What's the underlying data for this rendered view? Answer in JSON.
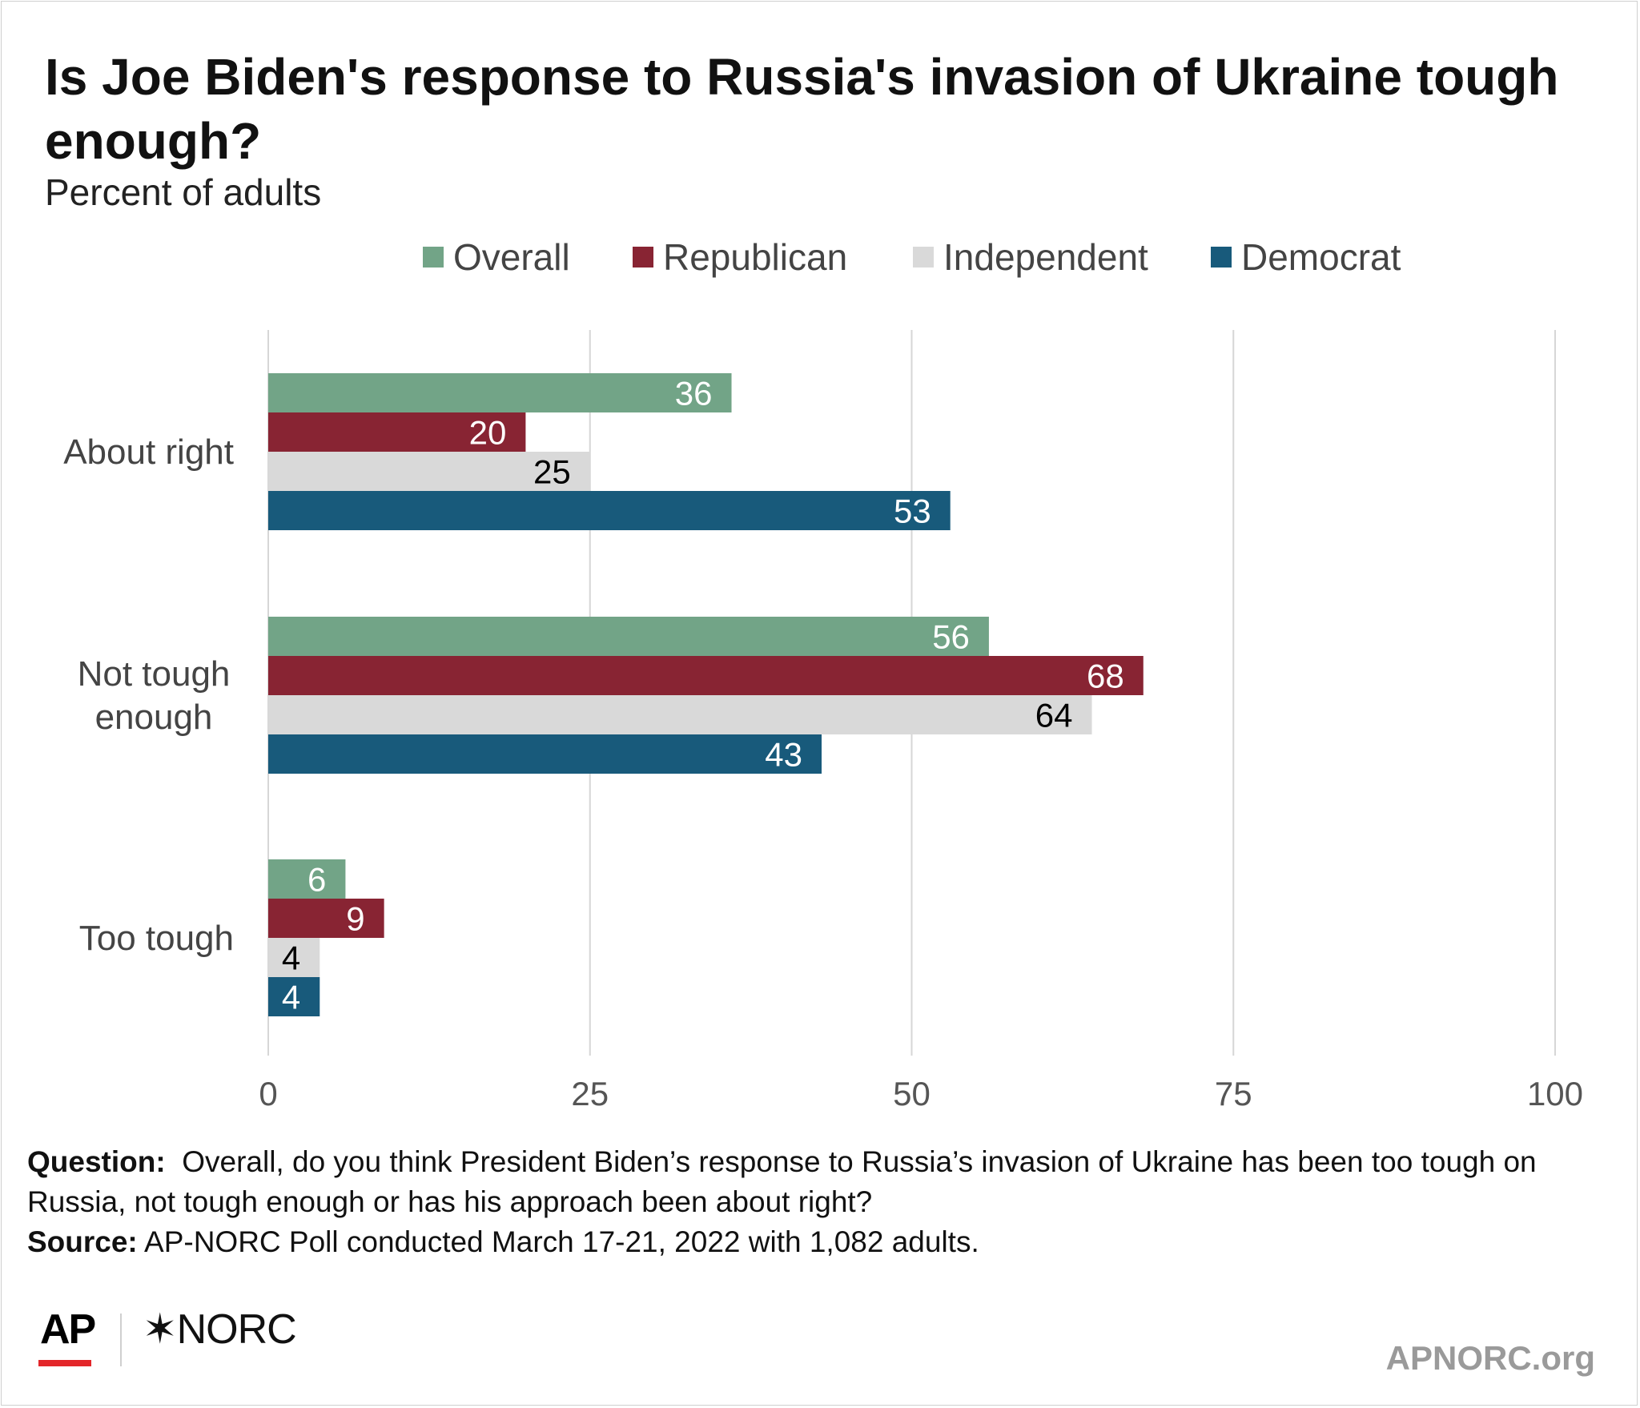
{
  "chart_data": {
    "type": "bar",
    "orientation": "horizontal",
    "title": "Is Joe Biden's response to Russia's invasion of Ukraine tough enough?",
    "subtitle": "Percent of adults",
    "categories": [
      "About right",
      "Not tough enough",
      "Too tough"
    ],
    "series": [
      {
        "name": "Overall",
        "color": "#72a487",
        "label_color": "#ffffff",
        "values": [
          36,
          56,
          6
        ]
      },
      {
        "name": "Republican",
        "color": "#882433",
        "label_color": "#ffffff",
        "values": [
          20,
          68,
          9
        ]
      },
      {
        "name": "Independent",
        "color": "#d9d9d9",
        "label_color": "#000000",
        "values": [
          25,
          64,
          4
        ]
      },
      {
        "name": "Democrat",
        "color": "#185a7b",
        "label_color": "#ffffff",
        "values": [
          53,
          43,
          4
        ]
      }
    ],
    "xlim": [
      0,
      100
    ],
    "xticks": [
      0,
      25,
      50,
      75,
      100
    ],
    "grid": true,
    "legend_position": "top"
  },
  "footer": {
    "question_label": "Question:",
    "question_text": "Overall, do you think President Biden’s response to Russia’s invasion of Ukraine has been too tough on Russia, not tough enough or has his approach been about right?",
    "source_label": "Source:",
    "source_text": "AP-NORC Poll conducted March 17-21, 2022 with 1,082 adults."
  },
  "branding": {
    "ap_logo": "AP",
    "norc_logo": "✶NORC",
    "site": "APNORC.org"
  }
}
